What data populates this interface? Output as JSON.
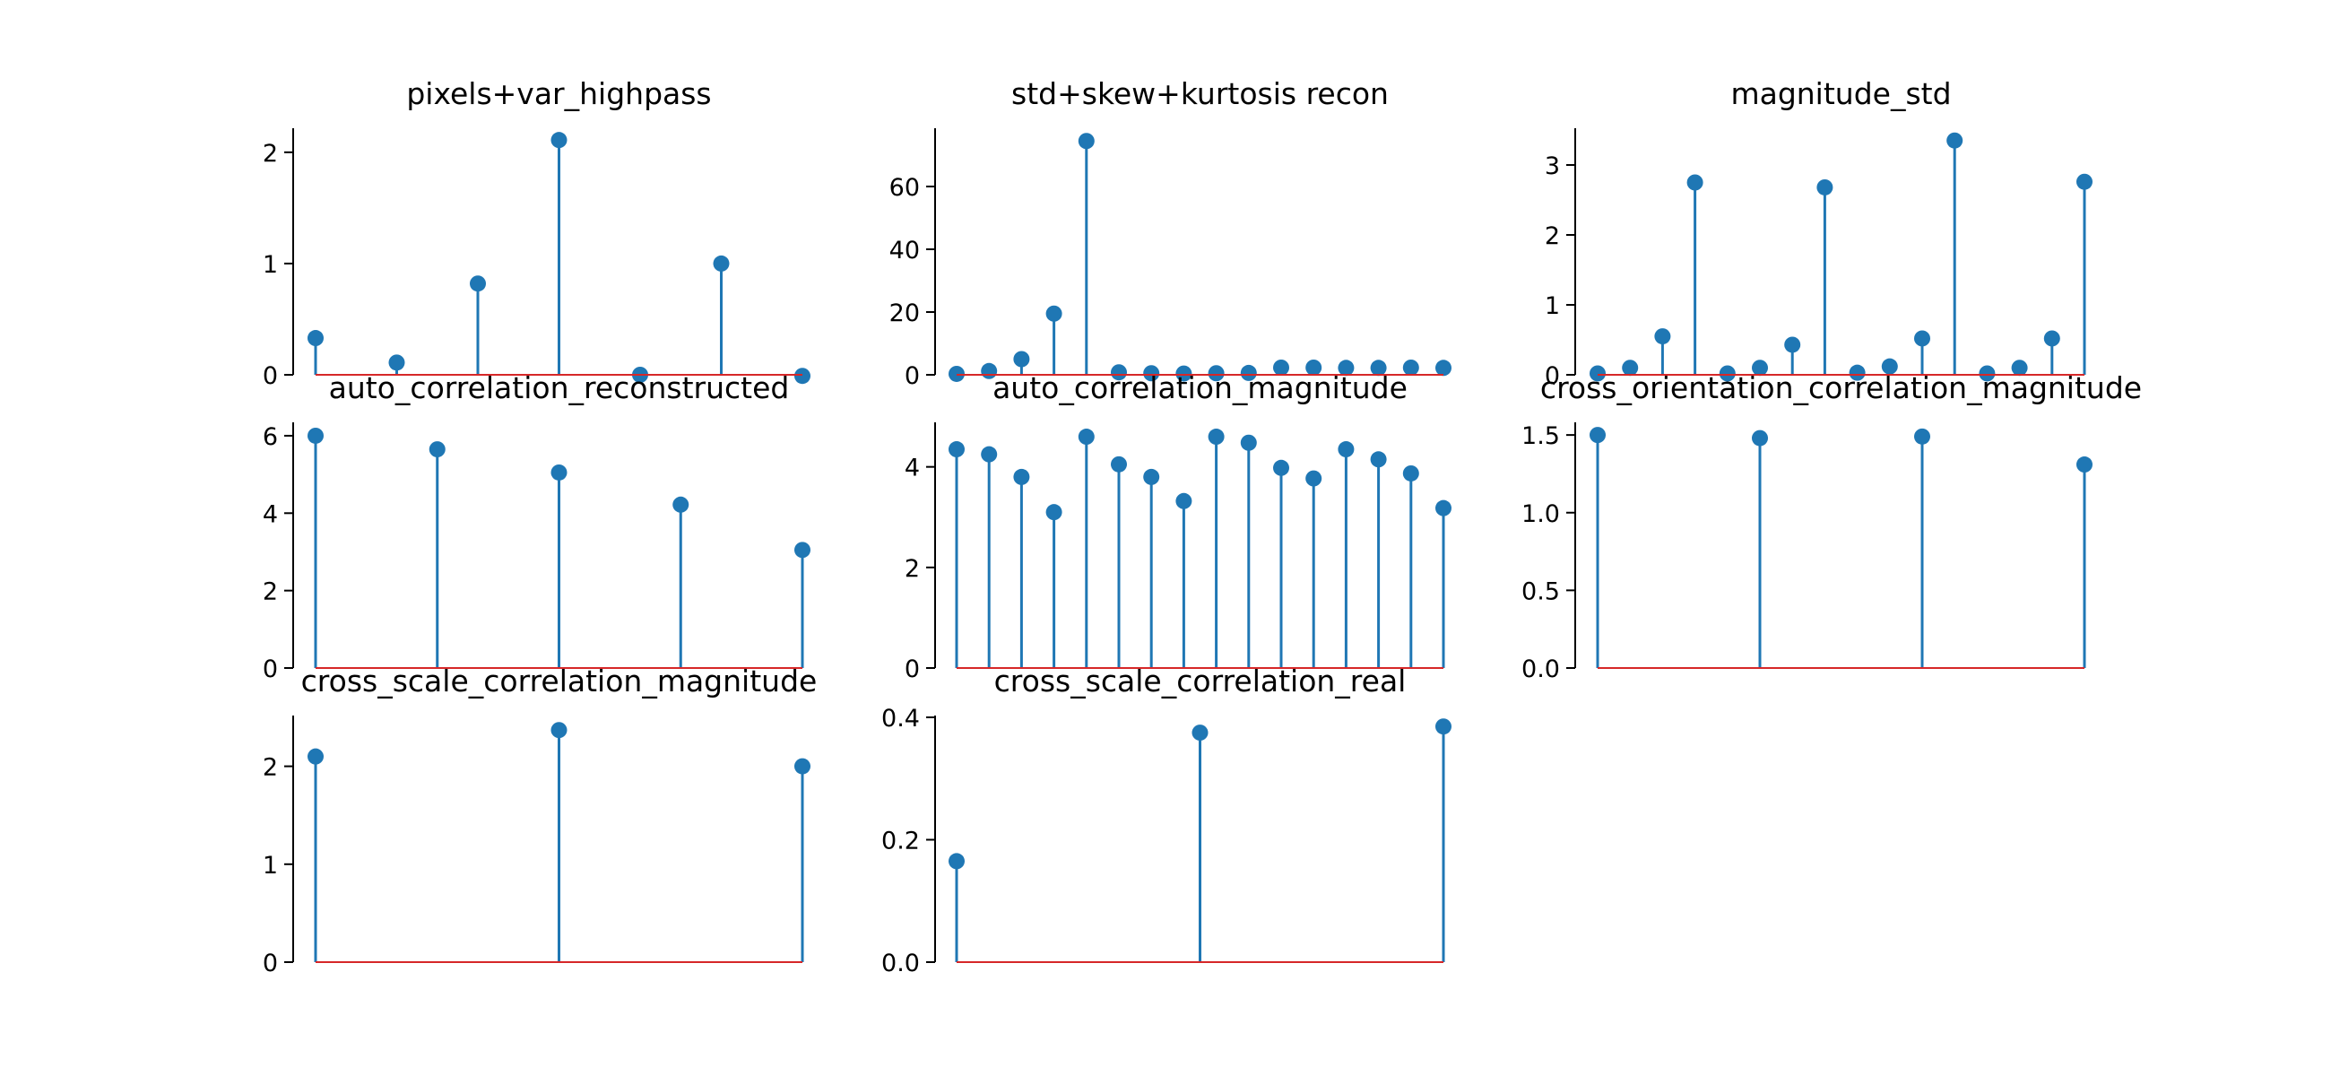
{
  "colors": {
    "stem": "#1f77b4",
    "marker": "#1f77b4",
    "baseline": "#d62728",
    "axis": "#000000"
  },
  "chart_data": [
    {
      "type": "stem",
      "title": "pixels+var_highpass",
      "x": [
        0,
        1,
        2,
        3,
        4,
        5,
        6
      ],
      "values": [
        0.33,
        0.11,
        0.82,
        2.11,
        0.0,
        1.0,
        -0.01
      ],
      "ylim": [
        0,
        2.2
      ],
      "yticks": [
        0,
        1,
        2
      ],
      "ytick_labels": [
        "0",
        "1",
        "2"
      ]
    },
    {
      "type": "stem",
      "title": "std+skew+kurtosis recon",
      "x": [
        0,
        1,
        2,
        3,
        4,
        5,
        6,
        7,
        8,
        9,
        10,
        11,
        12,
        13,
        14,
        15
      ],
      "values": [
        0.3,
        1.2,
        5.0,
        19.5,
        74.5,
        0.8,
        0.5,
        0.4,
        0.5,
        0.6,
        2.3,
        2.3,
        2.2,
        2.2,
        2.3,
        2.2
      ],
      "ylim": [
        0,
        78
      ],
      "yticks": [
        0,
        20,
        40,
        60
      ],
      "ytick_labels": [
        "0",
        "20",
        "40",
        "60"
      ]
    },
    {
      "type": "stem",
      "title": "magnitude_std",
      "x": [
        0,
        1,
        2,
        3,
        4,
        5,
        6,
        7,
        8,
        9,
        10,
        11,
        12,
        13,
        14,
        15
      ],
      "values": [
        0.02,
        0.1,
        0.55,
        2.75,
        0.02,
        0.1,
        0.43,
        2.68,
        0.03,
        0.12,
        0.52,
        3.35,
        0.02,
        0.1,
        0.52,
        2.76
      ],
      "ylim": [
        0,
        3.5
      ],
      "yticks": [
        0,
        1,
        2,
        3
      ],
      "ytick_labels": [
        "0",
        "1",
        "2",
        "3"
      ]
    },
    {
      "type": "stem",
      "title": "auto_correlation_reconstructed",
      "x": [
        0,
        1,
        2,
        3,
        4
      ],
      "values": [
        6.0,
        5.65,
        5.05,
        4.22,
        3.05
      ],
      "ylim": [
        0,
        6.3
      ],
      "yticks": [
        0,
        2,
        4,
        6
      ],
      "ytick_labels": [
        "0",
        "2",
        "4",
        "6"
      ]
    },
    {
      "type": "stem",
      "title": "auto_correlation_magnitude",
      "x": [
        0,
        1,
        2,
        3,
        4,
        5,
        6,
        7,
        8,
        9,
        10,
        11,
        12,
        13,
        14,
        15
      ],
      "values": [
        4.35,
        4.25,
        3.8,
        3.1,
        4.6,
        4.05,
        3.8,
        3.32,
        4.6,
        4.48,
        3.98,
        3.77,
        4.35,
        4.15,
        3.87,
        3.18
      ],
      "ylim": [
        0,
        4.85
      ],
      "yticks": [
        0,
        2,
        4
      ],
      "ytick_labels": [
        "0",
        "2",
        "4"
      ]
    },
    {
      "type": "stem",
      "title": "cross_orientation_correlation_magnitude",
      "x": [
        0,
        1,
        2,
        3
      ],
      "values": [
        1.5,
        1.48,
        1.49,
        1.31
      ],
      "ylim": [
        0,
        1.57
      ],
      "yticks": [
        0,
        0.5,
        1.0,
        1.5
      ],
      "ytick_labels": [
        "0.0",
        "0.5",
        "1.0",
        "1.5"
      ]
    },
    {
      "type": "stem",
      "title": "cross_scale_correlation_magnitude",
      "x": [
        0,
        1,
        2
      ],
      "values": [
        2.1,
        2.37,
        2.0
      ],
      "ylim": [
        0,
        2.5
      ],
      "yticks": [
        0,
        1,
        2
      ],
      "ytick_labels": [
        "0",
        "1",
        "2"
      ]
    },
    {
      "type": "stem",
      "title": "cross_scale_correlation_real",
      "x": [
        0,
        1,
        2
      ],
      "values": [
        0.165,
        0.375,
        0.385
      ],
      "ylim": [
        0,
        0.4
      ],
      "yticks": [
        0,
        0.2,
        0.4
      ],
      "ytick_labels": [
        "0.0",
        "0.2",
        "0.4"
      ]
    }
  ]
}
